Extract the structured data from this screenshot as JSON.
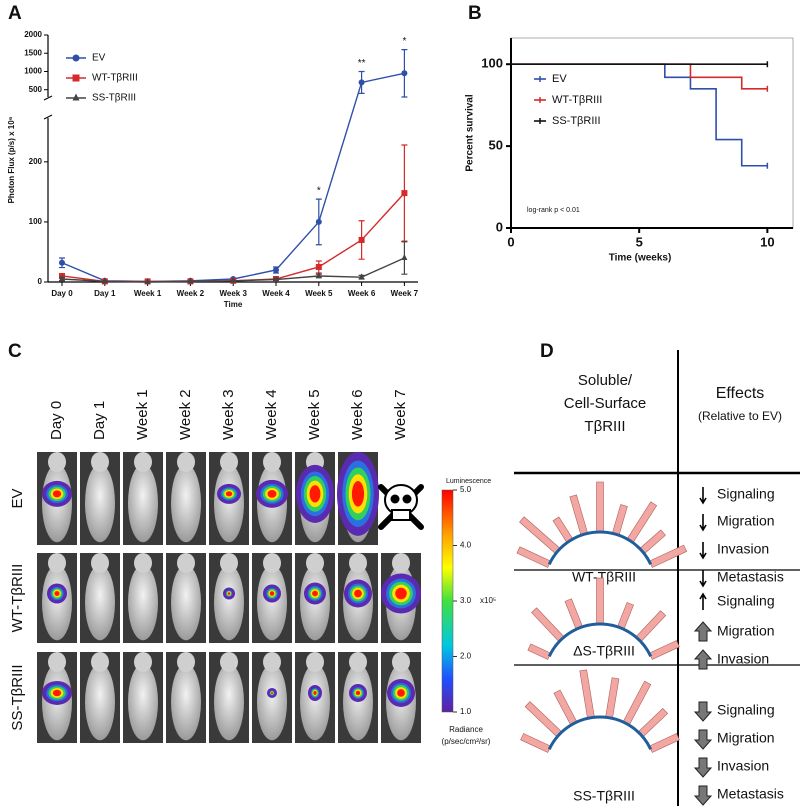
{
  "chart_data": [
    {
      "type": "line",
      "label": "A",
      "ylabel": "Photon Flux (p/s) x 10⁶",
      "xlabel": "Time",
      "categories": [
        "Day 0",
        "Day 1",
        "Week 1",
        "Week 2",
        "Week 3",
        "Week 4",
        "Week 5",
        "Week 6",
        "Week 7"
      ],
      "ylim": [
        0,
        2000
      ],
      "ybreak": [
        273,
        300
      ],
      "yticks": [
        0,
        100,
        200,
        500,
        1000,
        1500,
        2000
      ],
      "significance": [
        null,
        null,
        null,
        null,
        null,
        null,
        "*",
        "**",
        "*"
      ],
      "series": [
        {
          "name": "EV",
          "color": "#2f4fa8",
          "marker": "circle",
          "values": [
            32,
            2,
            1,
            2,
            5,
            20,
            100,
            700,
            950
          ],
          "errors": [
            8,
            1,
            1,
            1,
            1,
            5,
            38,
            300,
            650
          ]
        },
        {
          "name": "WT-TβRIII",
          "color": "#d42a2a",
          "marker": "square",
          "values": [
            10,
            1,
            1,
            1,
            2,
            5,
            25,
            70,
            148
          ],
          "errors": [
            4,
            1,
            1,
            1,
            1,
            2,
            10,
            32,
            80
          ]
        },
        {
          "name": "SS-TβRIII",
          "color": "#444444",
          "marker": "triangle",
          "values": [
            5,
            1,
            0,
            1,
            2,
            4,
            10,
            8,
            40
          ],
          "errors": [
            3,
            1,
            0,
            1,
            1,
            2,
            3,
            3,
            27
          ]
        }
      ]
    },
    {
      "type": "line",
      "step": true,
      "label": "B",
      "ylabel": "Percent survival",
      "xlabel": "Time (weeks)",
      "annotation": "log-rank p < 0.01",
      "xlim": [
        0,
        11
      ],
      "xticks": [
        0,
        5,
        10
      ],
      "ylim": [
        0,
        116
      ],
      "yticks": [
        0,
        50,
        100
      ],
      "series": [
        {
          "name": "EV",
          "color": "#2f4fa8",
          "x": [
            0,
            6,
            7,
            8,
            9,
            10
          ],
          "values": [
            100,
            92,
            85,
            54,
            38,
            38
          ]
        },
        {
          "name": "WT-TβRIII",
          "color": "#d42a2a",
          "x": [
            0,
            7,
            9,
            10
          ],
          "values": [
            100,
            92,
            85,
            85
          ]
        },
        {
          "name": "SS-TβRIII",
          "color": "#111111",
          "x": [
            0,
            10
          ],
          "values": [
            100,
            100
          ]
        }
      ]
    }
  ],
  "panel_c": {
    "label": "C",
    "columns": [
      "Day 0",
      "Day 1",
      "Week 1",
      "Week 2",
      "Week 3",
      "Week 4",
      "Week 5",
      "Week 6",
      "Week 7"
    ],
    "rows": [
      "EV",
      "WT-TβRIII",
      "SS-TβRIII"
    ],
    "colorbar": {
      "title": "Luminescence",
      "range": [
        1,
        5
      ],
      "ticks": [
        {
          "value": 5,
          "label": "5.0"
        },
        {
          "value": 4,
          "label": "4.0"
        },
        {
          "value": 3,
          "label": "3.0"
        },
        {
          "value": 2,
          "label": "2.0"
        },
        {
          "value": 1,
          "label": "1.0"
        }
      ],
      "exponent": "x10⁵",
      "unit_title": "Radiance",
      "unit": "(p/sec/cm²/sr)"
    }
  },
  "panel_d": {
    "label": "D",
    "header": {
      "left": [
        "Soluble/",
        "Cell-Surface",
        "TβRIII"
      ],
      "right": [
        "Effects",
        "(Relative to EV)"
      ]
    },
    "rows": [
      {
        "name": "WT-TβRIII",
        "effects": [
          "Signaling",
          "Migration",
          "Invasion",
          "Metastasis"
        ]
      },
      {
        "name": "ΔS-TβRIII",
        "effects": [
          "Signaling",
          "Migration",
          "Invasion"
        ]
      },
      {
        "name": "SS-TβRIII",
        "effects": [
          "Signaling",
          "Migration",
          "Invasion",
          "Metastasis"
        ]
      }
    ]
  }
}
